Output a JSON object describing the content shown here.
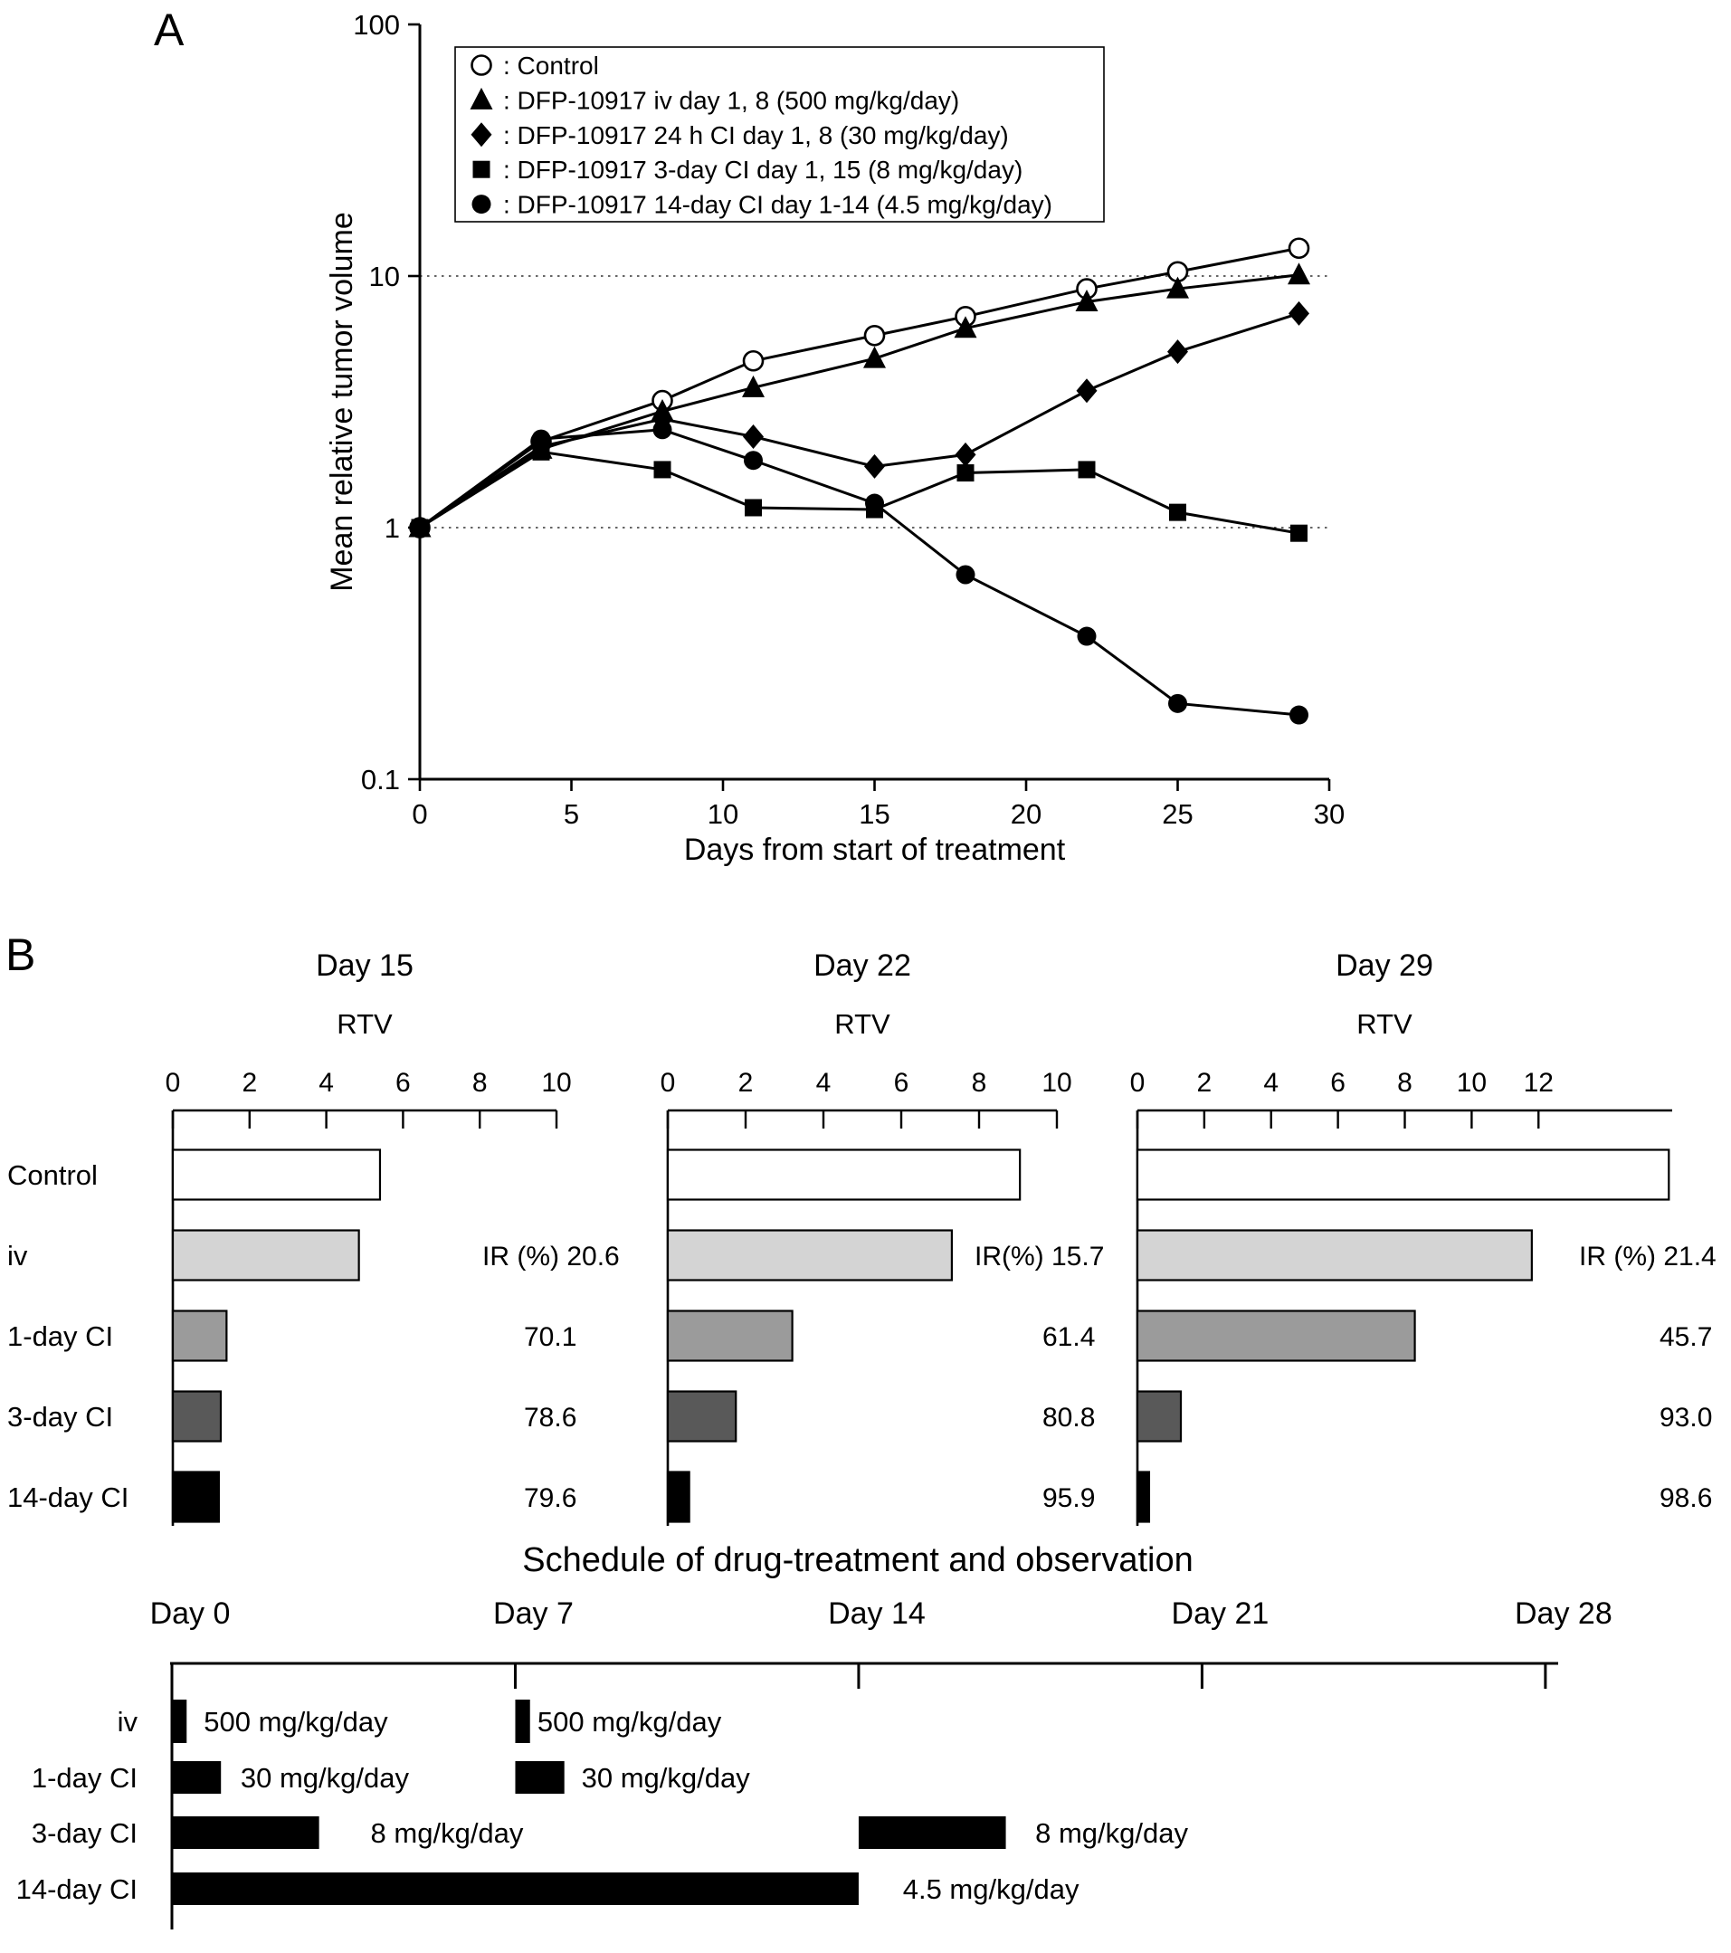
{
  "panels": {
    "a_label": "A",
    "b_label": "B"
  },
  "colors": {
    "line": "#000000",
    "bar_fills": [
      "#ffffff",
      "#d4d4d4",
      "#9b9b9b",
      "#595959",
      "#000000"
    ],
    "bar_stroke": "#000000"
  },
  "chart_data": [
    {
      "id": "tumor-volume-line",
      "type": "line",
      "xlabel": "Days from start of treatment",
      "ylabel": "Mean relative tumor volume",
      "x": [
        0,
        4,
        8,
        11,
        15,
        18,
        22,
        25,
        29
      ],
      "xlim": [
        0,
        30
      ],
      "xticks": [
        0,
        5,
        10,
        15,
        20,
        25,
        30
      ],
      "yscale": "log",
      "ylim": [
        0.1,
        100
      ],
      "yticks": [
        "0.1",
        "1",
        "10",
        "100"
      ],
      "grid_y": [
        1,
        10
      ],
      "legend_position": "upper-left-box",
      "series": [
        {
          "name": "Control",
          "marker": "circle-open",
          "values": [
            1,
            2.2,
            3.2,
            4.6,
            5.8,
            6.9,
            8.9,
            10.4,
            12.9
          ]
        },
        {
          "name": "DFP-10917 iv day 1, 8 (500 mg/kg/day)",
          "marker": "triangle-filled",
          "values": [
            1,
            2.05,
            2.9,
            3.6,
            4.7,
            6.2,
            7.9,
            8.9,
            10.1
          ]
        },
        {
          "name": "DFP-10917 24 h CI day 1, 8 (30 mg/kg/day)",
          "marker": "diamond-filled",
          "values": [
            1,
            2.1,
            2.7,
            2.3,
            1.75,
            1.95,
            3.5,
            5,
            7.1
          ]
        },
        {
          "name": "DFP-10917 3-day CI day 1, 15 (8 mg/kg/day)",
          "marker": "square-filled",
          "values": [
            1,
            2,
            1.7,
            1.2,
            1.18,
            1.65,
            1.7,
            1.15,
            0.95
          ]
        },
        {
          "name": "DFP-10917 14-day CI day 1-14 (4.5 mg/kg/day)",
          "marker": "circle-filled",
          "values": [
            1,
            2.25,
            2.45,
            1.85,
            1.25,
            0.65,
            0.37,
            0.2,
            0.18
          ]
        }
      ]
    },
    {
      "id": "rtv-day15",
      "type": "bar",
      "title": "Day 15",
      "xlabel": "RTV",
      "xlim": [
        0,
        10
      ],
      "xticks": [
        0,
        2,
        4,
        6,
        8,
        10
      ],
      "categories": [
        "Control",
        "iv",
        "1-day CI",
        "3-day CI",
        "14-day CI"
      ],
      "values": [
        5.4,
        4.85,
        1.4,
        1.25,
        1.2
      ],
      "ir_rows": [
        "IR (%) 20.6",
        "70.1",
        "78.6",
        "79.6"
      ]
    },
    {
      "id": "rtv-day22",
      "type": "bar",
      "title": "Day 22",
      "xlabel": "RTV",
      "xlim": [
        0,
        10
      ],
      "xticks": [
        0,
        2,
        4,
        6,
        8,
        10
      ],
      "categories": [
        "Control",
        "iv",
        "1-day CI",
        "3-day CI",
        "14-day CI"
      ],
      "values": [
        9.05,
        7.3,
        3.2,
        1.75,
        0.55
      ],
      "ir_rows": [
        "IR(%) 15.7",
        "61.4",
        "80.8",
        "95.9"
      ]
    },
    {
      "id": "rtv-day29",
      "type": "bar",
      "title": "Day 29",
      "xlabel": "RTV",
      "xlim": [
        0,
        16
      ],
      "xticks": [
        0,
        2,
        4,
        6,
        8,
        10,
        12
      ],
      "categories": [
        "Control",
        "iv",
        "1-day CI",
        "3-day CI",
        "14-day CI"
      ],
      "values": [
        15.9,
        11.8,
        8.3,
        1.3,
        0.35
      ],
      "ir_rows": [
        "IR (%) 21.4",
        "45.7",
        "93.0",
        "98.6"
      ]
    },
    {
      "id": "treatment-schedule",
      "type": "gantt",
      "title": "Schedule of drug-treatment and observation",
      "day_ticks": [
        0,
        7,
        14,
        21,
        28
      ],
      "day_labels": [
        "Day 0",
        "Day 7",
        "Day 14",
        "Day 21",
        "Day 28"
      ],
      "xlim": [
        0,
        28.5
      ],
      "rows": [
        {
          "label": "iv",
          "tall": true,
          "bars": [
            [
              0,
              0.3
            ],
            [
              7,
              7.3
            ]
          ],
          "bar_labels": [
            {
              "day": 0.65,
              "text": "500 mg/kg/day"
            },
            {
              "day": 7.45,
              "text": "500 mg/kg/day"
            }
          ]
        },
        {
          "label": "1-day CI",
          "bars": [
            [
              0,
              1
            ],
            [
              7,
              8
            ]
          ],
          "bar_labels": [
            {
              "day": 1.4,
              "text": "30 mg/kg/day"
            },
            {
              "day": 8.35,
              "text": "30 mg/kg/day"
            }
          ]
        },
        {
          "label": "3-day CI",
          "bars": [
            [
              0,
              3
            ],
            [
              14,
              17
            ]
          ],
          "bar_labels": [
            {
              "day": 4.05,
              "text": "8 mg/kg/day"
            },
            {
              "day": 17.6,
              "text": "8 mg/kg/day"
            }
          ]
        },
        {
          "label": "14-day CI",
          "bars": [
            [
              0,
              14
            ]
          ],
          "bar_labels": [
            {
              "day": 14.9,
              "text": "4.5 mg/kg/day"
            }
          ]
        }
      ]
    }
  ]
}
